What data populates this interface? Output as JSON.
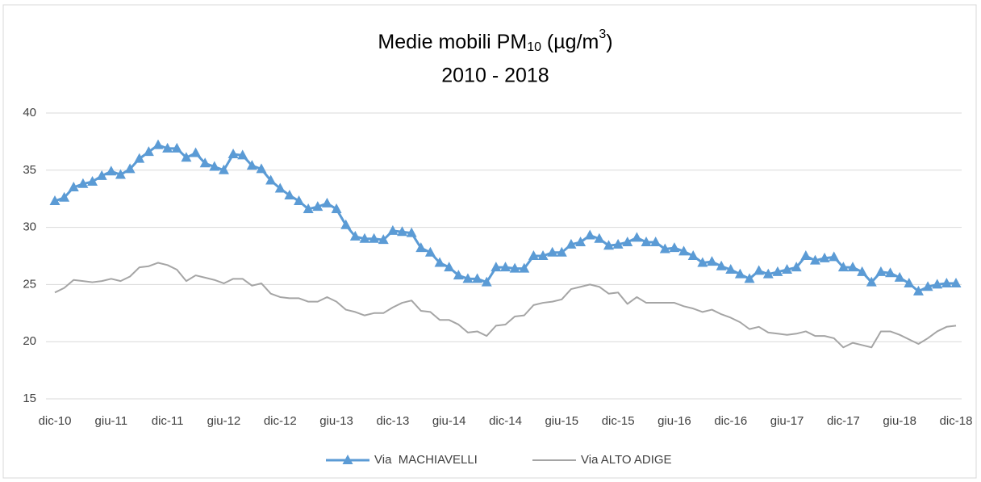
{
  "chart_data": {
    "type": "line",
    "title": [
      {
        "text": "Medie mobili PM"
      },
      {
        "text": "10",
        "sub": true
      },
      {
        "text": " (µg/m"
      },
      {
        "text": "3",
        "sup": true
      },
      {
        "text": ")"
      }
    ],
    "subtitle": "2010 - 2018",
    "categories": [
      "dic-10",
      null,
      null,
      null,
      null,
      null,
      "giu-11",
      null,
      null,
      null,
      null,
      null,
      "dic-11",
      null,
      null,
      null,
      null,
      null,
      "giu-12",
      null,
      null,
      null,
      null,
      null,
      "dic-12",
      null,
      null,
      null,
      null,
      null,
      "giu-13",
      null,
      null,
      null,
      null,
      null,
      "dic-13",
      null,
      null,
      null,
      null,
      null,
      "giu-14",
      null,
      null,
      null,
      null,
      null,
      "dic-14",
      null,
      null,
      null,
      null,
      null,
      "giu-15",
      null,
      null,
      null,
      null,
      null,
      "dic-15",
      null,
      null,
      null,
      null,
      null,
      "giu-16",
      null,
      null,
      null,
      null,
      null,
      "dic-16",
      null,
      null,
      null,
      null,
      null,
      "giu-17",
      null,
      null,
      null,
      null,
      null,
      "dic-17",
      null,
      null,
      null,
      null,
      null,
      "giu-18",
      null,
      null,
      null,
      null,
      null,
      "dic-18"
    ],
    "series": [
      {
        "name": "Via  MACHIAVELLI",
        "color": "#5b9bd5",
        "marker": "triangle",
        "values": [
          32.3,
          32.6,
          33.5,
          33.8,
          34.0,
          34.5,
          34.9,
          34.6,
          35.1,
          36.0,
          36.6,
          37.2,
          36.9,
          36.9,
          36.1,
          36.5,
          35.6,
          35.3,
          35.0,
          36.4,
          36.3,
          35.4,
          35.1,
          34.1,
          33.4,
          32.8,
          32.3,
          31.6,
          31.8,
          32.1,
          31.6,
          30.2,
          29.2,
          29.0,
          29.0,
          28.9,
          29.7,
          29.6,
          29.5,
          28.2,
          27.8,
          26.9,
          26.5,
          25.8,
          25.5,
          25.5,
          25.2,
          26.5,
          26.5,
          26.4,
          26.4,
          27.5,
          27.5,
          27.8,
          27.8,
          28.5,
          28.7,
          29.3,
          29.0,
          28.4,
          28.5,
          28.7,
          29.1,
          28.7,
          28.7,
          28.1,
          28.2,
          27.9,
          27.5,
          26.9,
          27.0,
          26.6,
          26.3,
          25.9,
          25.5,
          26.2,
          25.9,
          26.1,
          26.3,
          26.5,
          27.5,
          27.1,
          27.3,
          27.4,
          26.5,
          26.5,
          26.1,
          25.2,
          26.1,
          26.0,
          25.6,
          25.1,
          24.4,
          24.8,
          25.0,
          25.1,
          25.1
        ]
      },
      {
        "name": "Via ALTO ADIGE",
        "color": "#a5a5a5",
        "values": [
          24.3,
          24.7,
          25.4,
          25.3,
          25.2,
          25.3,
          25.5,
          25.3,
          25.7,
          26.5,
          26.6,
          26.9,
          26.7,
          26.3,
          25.3,
          25.8,
          25.6,
          25.4,
          25.1,
          25.5,
          25.5,
          24.9,
          25.1,
          24.2,
          23.9,
          23.8,
          23.8,
          23.5,
          23.5,
          23.9,
          23.5,
          22.8,
          22.6,
          22.3,
          22.5,
          22.5,
          23.0,
          23.4,
          23.6,
          22.7,
          22.6,
          21.9,
          21.9,
          21.5,
          20.8,
          20.9,
          20.5,
          21.4,
          21.5,
          22.2,
          22.3,
          23.2,
          23.4,
          23.5,
          23.7,
          24.6,
          24.8,
          25.0,
          24.8,
          24.2,
          24.3,
          23.3,
          23.9,
          23.4,
          23.4,
          23.4,
          23.4,
          23.1,
          22.9,
          22.6,
          22.8,
          22.4,
          22.1,
          21.7,
          21.1,
          21.3,
          20.8,
          20.7,
          20.6,
          20.7,
          20.9,
          20.5,
          20.5,
          20.3,
          19.5,
          19.9,
          19.7,
          19.5,
          20.9,
          20.9,
          20.6,
          20.2,
          19.8,
          20.3,
          20.9,
          21.3,
          21.4
        ]
      }
    ],
    "ylim": [
      15,
      40
    ],
    "yticks": [
      15,
      20,
      25,
      30,
      35,
      40
    ],
    "grid": true,
    "legend": "bottom"
  }
}
